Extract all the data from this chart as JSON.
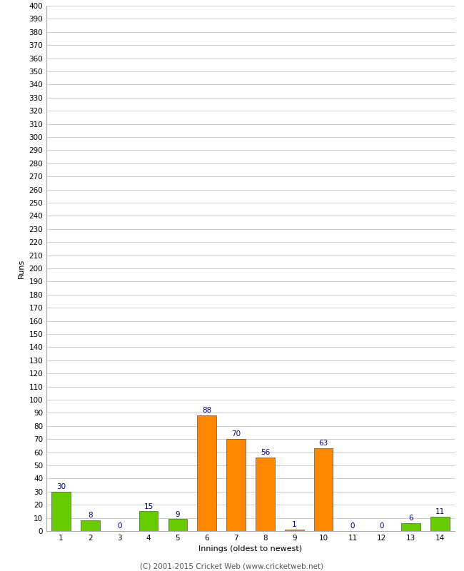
{
  "innings": [
    1,
    2,
    3,
    4,
    5,
    6,
    7,
    8,
    9,
    10,
    11,
    12,
    13,
    14
  ],
  "values": [
    30,
    8,
    0,
    15,
    9,
    88,
    70,
    56,
    1,
    63,
    0,
    0,
    6,
    11
  ],
  "colors": [
    "#66cc00",
    "#66cc00",
    "#66cc00",
    "#66cc00",
    "#66cc00",
    "#ff8800",
    "#ff8800",
    "#ff8800",
    "#ff8800",
    "#ff8800",
    "#66cc00",
    "#66cc00",
    "#66cc00",
    "#66cc00"
  ],
  "xlabel": "Innings (oldest to newest)",
  "ylabel": "Runs",
  "ylim": [
    0,
    400
  ],
  "ytick_step": 10,
  "label_color": "#000080",
  "bar_edge_color": "#333333",
  "background_color": "#ffffff",
  "grid_color": "#cccccc",
  "footer": "(C) 2001-2015 Cricket Web (www.cricketweb.net)"
}
